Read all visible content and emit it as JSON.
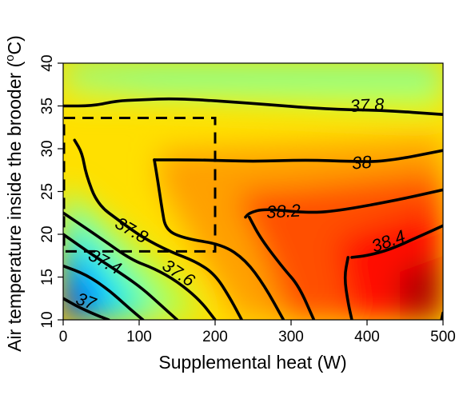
{
  "chart_data": {
    "type": "heatmap",
    "title": "",
    "xlabel": "Supplemental heat (W)",
    "ylabel_prefix": "Air temperature inside the brooder (",
    "ylabel_sup": "o",
    "ylabel_suffix": "C)",
    "xlim": [
      0,
      500
    ],
    "ylim": [
      10,
      40
    ],
    "x_ticks": [
      0,
      100,
      200,
      300,
      400,
      500
    ],
    "y_ticks": [
      10,
      15,
      20,
      25,
      30,
      35,
      40
    ],
    "x_tick_labels": [
      "0",
      "100",
      "200",
      "300",
      "400",
      "500"
    ],
    "y_tick_labels": [
      "10",
      "15",
      "20",
      "25",
      "30",
      "35",
      "40"
    ],
    "color_scale": [
      "#00008b",
      "#0000ff",
      "#00bfff",
      "#00ffff",
      "#7fff7f",
      "#ffff00",
      "#ffaa00",
      "#ff0000",
      "#8b0000"
    ],
    "contours": [
      {
        "level": "37",
        "label": "37",
        "points": [
          [
            0,
            12.5
          ],
          [
            20,
            11.5
          ],
          [
            45,
            10.5
          ],
          [
            60,
            10
          ]
        ],
        "label_pos": [
          30,
          12.2
        ],
        "label_angle": 20
      },
      {
        "level": "37.2",
        "label": "",
        "points": [
          [
            0,
            16.3
          ],
          [
            30,
            15.3
          ],
          [
            60,
            13.5
          ],
          [
            85,
            11.5
          ],
          [
            105,
            10
          ]
        ],
        "label_pos": null,
        "label_angle": 0
      },
      {
        "level": "37.4",
        "label": "37.4",
        "points": [
          [
            0,
            20
          ],
          [
            40,
            17.5
          ],
          [
            80,
            15.2
          ],
          [
            105,
            13.6
          ],
          [
            125,
            12
          ],
          [
            150,
            10
          ]
        ],
        "label_pos": [
          55,
          16.8
        ],
        "label_angle": 28
      },
      {
        "level": "37.6",
        "label": "37.6",
        "points": [
          [
            0,
            22.5
          ],
          [
            50,
            19.5
          ],
          [
            90,
            17
          ],
          [
            120,
            16
          ],
          [
            150,
            14.5
          ],
          [
            180,
            12.3
          ],
          [
            200,
            10
          ]
        ],
        "label_pos": [
          152,
          15.5
        ],
        "label_angle": 33
      },
      {
        "level": "37.8",
        "label": "37.8",
        "points": [
          [
            0,
            35
          ],
          [
            40,
            35
          ],
          [
            70,
            35.6
          ],
          [
            100,
            35.7
          ],
          [
            150,
            35.9
          ],
          [
            250,
            35.3
          ],
          [
            350,
            34.6
          ],
          [
            420,
            34.5
          ],
          [
            500,
            34
          ]
        ],
        "label_pos": [
          400,
          35.1
        ],
        "label_angle": -3
      },
      {
        "level": "37.8",
        "label": "37.8",
        "points": [
          [
            15,
            31
          ],
          [
            25,
            29.5
          ],
          [
            30,
            27
          ],
          [
            45,
            23.5
          ],
          [
            75,
            21.5
          ],
          [
            105,
            19.6
          ],
          [
            140,
            18
          ],
          [
            175,
            16.8
          ],
          [
            200,
            15.3
          ],
          [
            220,
            12.5
          ],
          [
            235,
            10
          ]
        ],
        "label_pos": [
          90,
          20.5
        ],
        "label_angle": 30
      },
      {
        "level": "38",
        "label": "38",
        "points": [
          [
            120,
            28.7
          ],
          [
            180,
            28.7
          ],
          [
            250,
            28.5
          ],
          [
            320,
            28.7
          ],
          [
            380,
            28.5
          ],
          [
            425,
            28.5
          ],
          [
            500,
            29.8
          ]
        ],
        "label_pos": [
          393,
          28.4
        ],
        "label_angle": -4
      },
      {
        "level": "38",
        "label": "",
        "points": [
          [
            120,
            28.7
          ],
          [
            125,
            26
          ],
          [
            130,
            23
          ],
          [
            135,
            20.5
          ],
          [
            160,
            19.5
          ],
          [
            210,
            18.8
          ],
          [
            240,
            17
          ],
          [
            265,
            14
          ],
          [
            290,
            10
          ]
        ],
        "label_pos": null,
        "label_angle": 0
      },
      {
        "level": "38.2",
        "label": "38.2",
        "points": [
          [
            240,
            22
          ],
          [
            245,
            22.5
          ],
          [
            265,
            23
          ],
          [
            320,
            22.5
          ],
          [
            360,
            22.7
          ],
          [
            440,
            24
          ],
          [
            500,
            25.2
          ]
        ],
        "label_pos": [
          290,
          22.7
        ],
        "label_angle": -3
      },
      {
        "level": "38.2",
        "label": "",
        "points": [
          [
            245,
            22
          ],
          [
            260,
            19.5
          ],
          [
            290,
            16
          ],
          [
            310,
            14
          ],
          [
            330,
            10
          ]
        ],
        "label_pos": null,
        "label_angle": 0
      },
      {
        "level": "38.4",
        "label": "38.4",
        "points": [
          [
            380,
            17.3
          ],
          [
            400,
            17.5
          ],
          [
            430,
            18.2
          ],
          [
            470,
            19.8
          ],
          [
            500,
            21
          ]
        ],
        "label_pos": [
          428,
          19.2
        ],
        "label_angle": -20
      },
      {
        "level": "38.4",
        "label": "",
        "points": [
          [
            375,
            17.3
          ],
          [
            370,
            15
          ],
          [
            375,
            12
          ],
          [
            380,
            10
          ]
        ],
        "label_pos": null,
        "label_angle": 0
      },
      {
        "level": "38.6",
        "label": "",
        "points": [
          [
            498,
            10
          ],
          [
            500,
            10.8
          ]
        ],
        "label_pos": null,
        "label_angle": 0
      }
    ],
    "dashed_box": {
      "x": [
        0,
        200
      ],
      "y": [
        18,
        33.6
      ]
    }
  }
}
